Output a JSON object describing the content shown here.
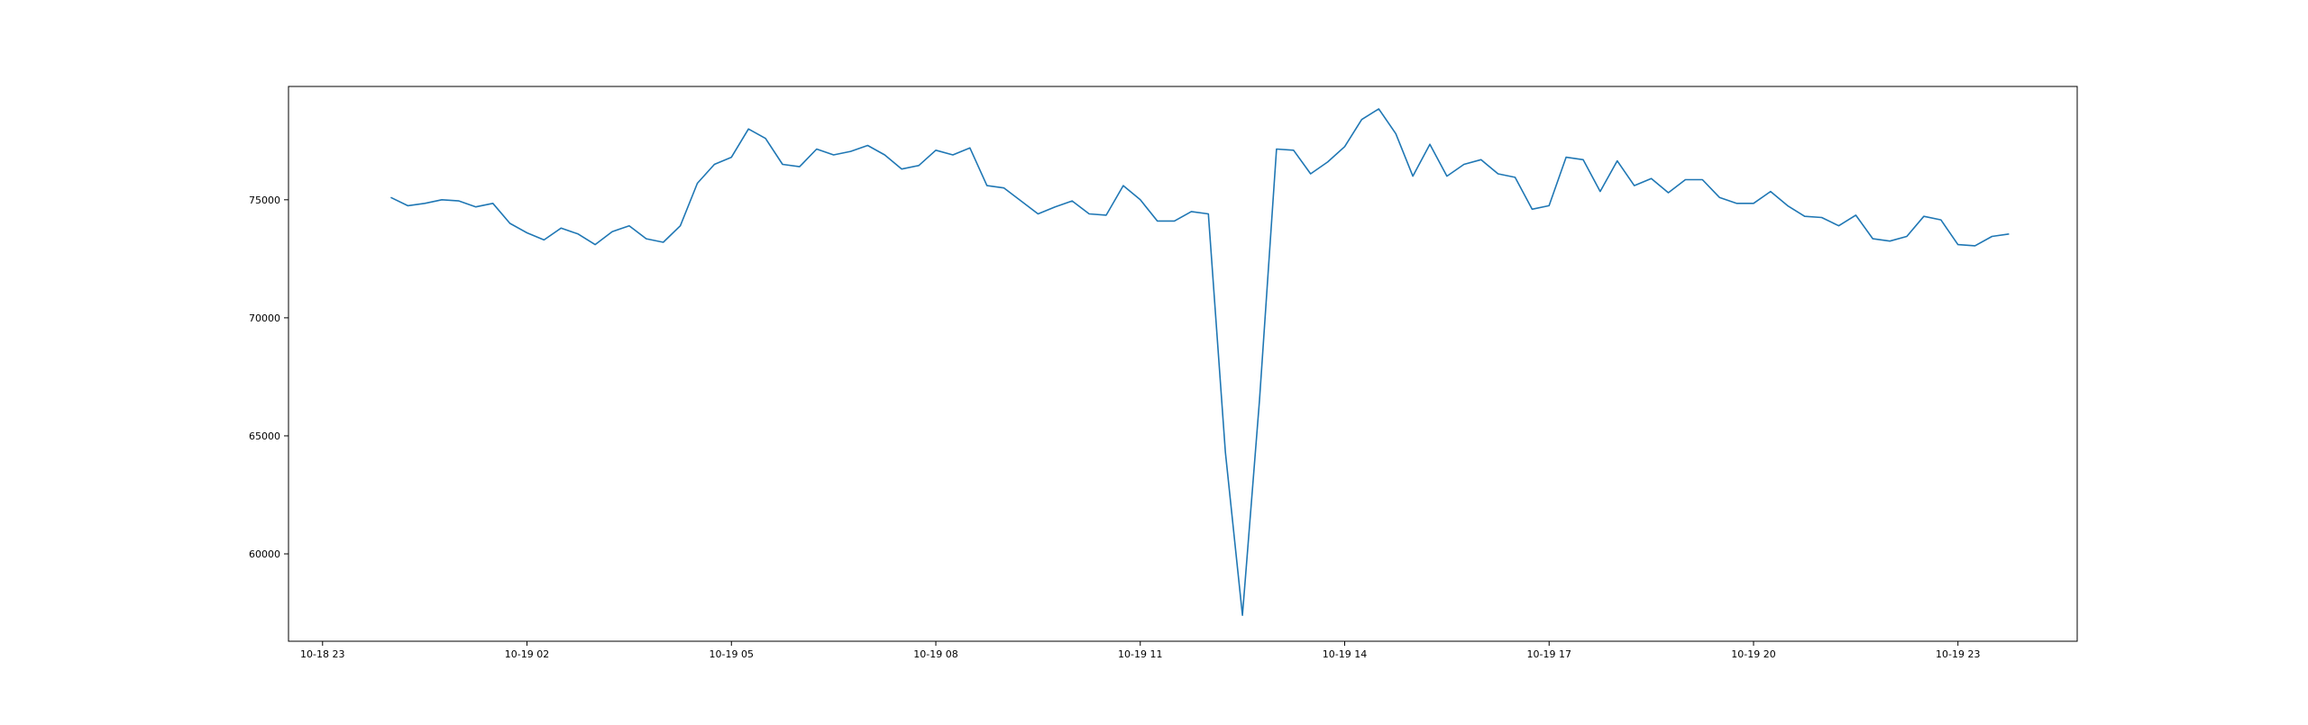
{
  "chart_data": {
    "type": "line",
    "title": "",
    "xlabel": "",
    "ylabel": "",
    "x_start": "10-19 00:00",
    "x_step_minutes": 15,
    "x_ticks": [
      "10-18 23",
      "10-19 02",
      "10-19 05",
      "10-19 08",
      "10-19 11",
      "10-19 14",
      "10-19 17",
      "10-19 20",
      "10-19 23"
    ],
    "y_ticks": [
      60000,
      65000,
      70000,
      75000
    ],
    "xlim": [
      "10-18 22:30",
      "10-20 00:45"
    ],
    "ylim": [
      56300,
      79800
    ],
    "grid": false,
    "legend": "none",
    "series": [
      {
        "color": "#1f77b4",
        "values": [
          75100,
          74750,
          74850,
          75000,
          74950,
          74700,
          74850,
          74000,
          73600,
          73300,
          73800,
          73550,
          73100,
          73650,
          73900,
          73350,
          73200,
          73900,
          75700,
          76500,
          76800,
          78000,
          77600,
          76500,
          76400,
          77150,
          76900,
          77050,
          77300,
          76900,
          76300,
          76450,
          77100,
          76900,
          77200,
          75600,
          75500,
          74950,
          74400,
          74700,
          74950,
          74400,
          74350,
          75600,
          75000,
          74100,
          74100,
          74500,
          74400,
          64300,
          57400,
          66500,
          77150,
          77100,
          76100,
          76600,
          77250,
          78400,
          78850,
          77800,
          76000,
          77350,
          76000,
          76500,
          76700,
          76100,
          75950,
          74600,
          74750,
          76800,
          76700,
          75350,
          76650,
          75600,
          75900,
          75300,
          75850,
          75850,
          75100,
          74850,
          74850,
          75350,
          74750,
          74300,
          74250,
          73900,
          74350,
          73350,
          73250,
          73450,
          74300,
          74150,
          73100,
          73050,
          73450,
          73550
        ]
      }
    ]
  }
}
